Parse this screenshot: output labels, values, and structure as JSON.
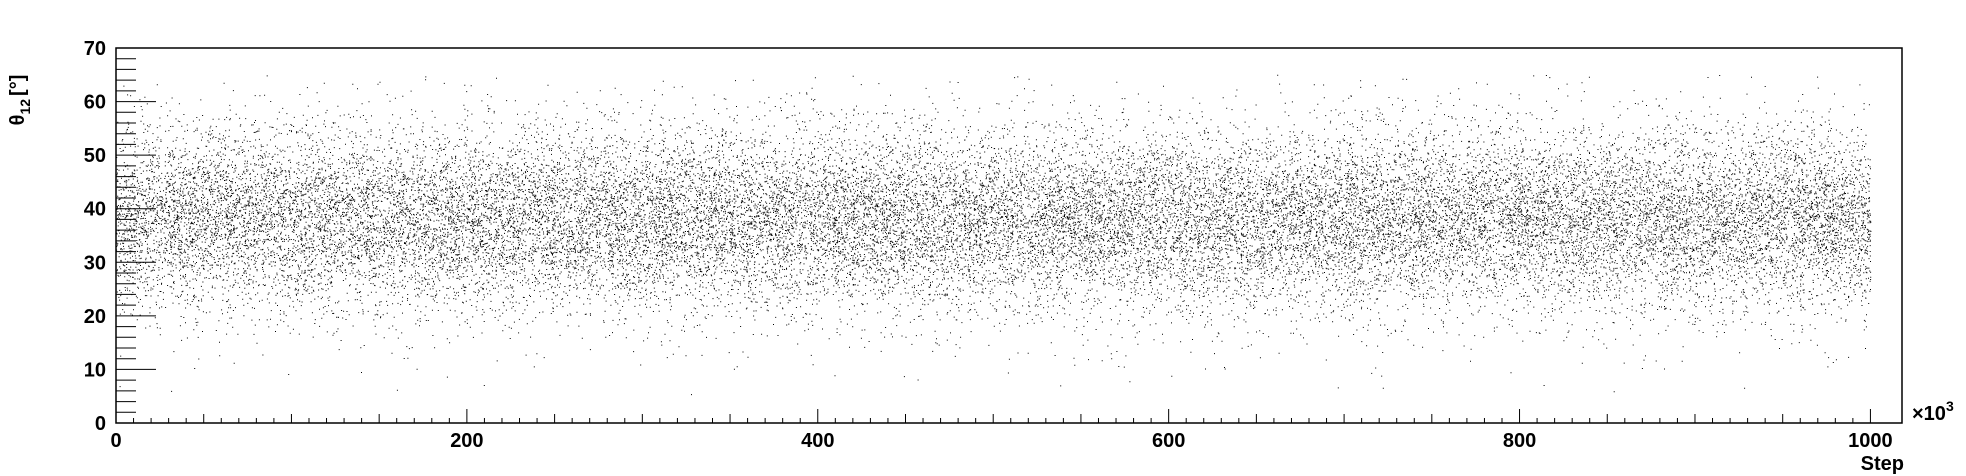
{
  "chart_data": {
    "type": "scatter",
    "title": "",
    "xlabel": "Step",
    "ylabel_main": "θ",
    "ylabel_sub": "12",
    "ylabel_unit": "[°]",
    "x_multiplier_label": "×10",
    "x_multiplier_exp": "3",
    "xlim": [
      0,
      1018
    ],
    "ylim": [
      0,
      70
    ],
    "x_ticks": [
      0,
      200,
      400,
      600,
      800,
      1000
    ],
    "y_ticks": [
      0,
      10,
      20,
      30,
      40,
      50,
      60,
      70
    ],
    "x_range_of_steps": [
      0,
      1000
    ],
    "marker_color": "#000000",
    "grid": false,
    "legend": "none",
    "density_profile": {
      "center": 38,
      "core_spread": 8,
      "min_value": 5,
      "max_value": 65
    }
  }
}
